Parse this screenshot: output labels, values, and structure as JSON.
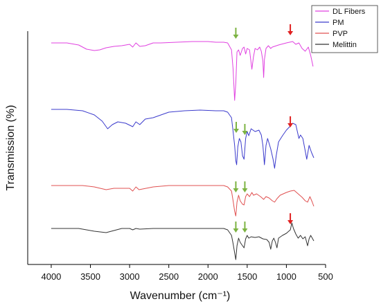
{
  "chart_data": {
    "type": "line",
    "title": "",
    "xlabel": "Wavenumber (cm⁻¹)",
    "ylabel": "Transmission (%)",
    "xlim": [
      4300,
      500
    ],
    "x_reversed": true,
    "x_ticks": [
      4000,
      3500,
      3000,
      2500,
      2000,
      1500,
      1000,
      500
    ],
    "y_tick_labels": false,
    "grid": false,
    "legend_position": "top-right",
    "series": [
      {
        "name": "DL Fibers",
        "color": "#e040e0",
        "points": [
          [
            4000,
            62
          ],
          [
            3800,
            62
          ],
          [
            3650,
            65
          ],
          [
            3550,
            71
          ],
          [
            3450,
            73
          ],
          [
            3380,
            72
          ],
          [
            3300,
            69
          ],
          [
            3200,
            67
          ],
          [
            3100,
            66
          ],
          [
            3000,
            64
          ],
          [
            2960,
            68
          ],
          [
            2920,
            62
          ],
          [
            2870,
            67
          ],
          [
            2800,
            66
          ],
          [
            2700,
            62
          ],
          [
            2600,
            62
          ],
          [
            2400,
            61
          ],
          [
            2200,
            60
          ],
          [
            2000,
            60
          ],
          [
            1900,
            61
          ],
          [
            1800,
            61
          ],
          [
            1750,
            62
          ],
          [
            1700,
            72
          ],
          [
            1680,
            100
          ],
          [
            1660,
            145
          ],
          [
            1645,
            120
          ],
          [
            1630,
            75
          ],
          [
            1610,
            72
          ],
          [
            1590,
            80
          ],
          [
            1560,
            70
          ],
          [
            1540,
            68
          ],
          [
            1520,
            78
          ],
          [
            1500,
            70
          ],
          [
            1470,
            72
          ],
          [
            1440,
            100
          ],
          [
            1420,
            82
          ],
          [
            1400,
            70
          ],
          [
            1370,
            72
          ],
          [
            1340,
            68
          ],
          [
            1320,
            74
          ],
          [
            1300,
            88
          ],
          [
            1290,
            112
          ],
          [
            1280,
            86
          ],
          [
            1260,
            70
          ],
          [
            1230,
            66
          ],
          [
            1200,
            70
          ],
          [
            1180,
            68
          ],
          [
            1100,
            65
          ],
          [
            1000,
            62
          ],
          [
            920,
            60
          ],
          [
            880,
            64
          ],
          [
            840,
            62
          ],
          [
            800,
            70
          ],
          [
            760,
            74
          ],
          [
            720,
            68
          ],
          [
            690,
            80
          ],
          [
            660,
            96
          ]
        ]
      },
      {
        "name": "PM",
        "color": "#3a3acc",
        "points": [
          [
            4000,
            158
          ],
          [
            3800,
            158
          ],
          [
            3600,
            160
          ],
          [
            3450,
            166
          ],
          [
            3350,
            175
          ],
          [
            3280,
            186
          ],
          [
            3220,
            180
          ],
          [
            3150,
            176
          ],
          [
            3050,
            178
          ],
          [
            2960,
            183
          ],
          [
            2920,
            176
          ],
          [
            2870,
            180
          ],
          [
            2800,
            172
          ],
          [
            2700,
            170
          ],
          [
            2500,
            162
          ],
          [
            2300,
            160
          ],
          [
            2100,
            159
          ],
          [
            1900,
            160
          ],
          [
            1800,
            160
          ],
          [
            1750,
            162
          ],
          [
            1700,
            170
          ],
          [
            1680,
            190
          ],
          [
            1660,
            210
          ],
          [
            1645,
            232
          ],
          [
            1635,
            238
          ],
          [
            1620,
            212
          ],
          [
            1600,
            200
          ],
          [
            1580,
            205
          ],
          [
            1560,
            225
          ],
          [
            1540,
            230
          ],
          [
            1520,
            200
          ],
          [
            1500,
            190
          ],
          [
            1480,
            196
          ],
          [
            1450,
            186
          ],
          [
            1400,
            190
          ],
          [
            1350,
            188
          ],
          [
            1320,
            195
          ],
          [
            1300,
            210
          ],
          [
            1280,
            238
          ],
          [
            1260,
            210
          ],
          [
            1240,
            200
          ],
          [
            1200,
            215
          ],
          [
            1170,
            230
          ],
          [
            1150,
            243
          ],
          [
            1130,
            225
          ],
          [
            1100,
            205
          ],
          [
            1050,
            196
          ],
          [
            1000,
            188
          ],
          [
            950,
            182
          ],
          [
            920,
            178
          ],
          [
            880,
            180
          ],
          [
            840,
            200
          ],
          [
            820,
            195
          ],
          [
            790,
            200
          ],
          [
            760,
            218
          ],
          [
            740,
            230
          ],
          [
            710,
            210
          ],
          [
            680,
            220
          ],
          [
            650,
            228
          ]
        ]
      },
      {
        "name": "PVP",
        "color": "#e05050",
        "points": [
          [
            4000,
            268
          ],
          [
            3800,
            268
          ],
          [
            3600,
            268
          ],
          [
            3450,
            270
          ],
          [
            3300,
            274
          ],
          [
            3200,
            272
          ],
          [
            3000,
            272
          ],
          [
            2960,
            276
          ],
          [
            2920,
            270
          ],
          [
            2880,
            274
          ],
          [
            2700,
            270
          ],
          [
            2500,
            268
          ],
          [
            2300,
            268
          ],
          [
            2100,
            268
          ],
          [
            1900,
            268
          ],
          [
            1800,
            268
          ],
          [
            1750,
            270
          ],
          [
            1700,
            276
          ],
          [
            1680,
            290
          ],
          [
            1660,
            305
          ],
          [
            1645,
            312
          ],
          [
            1630,
            292
          ],
          [
            1610,
            282
          ],
          [
            1590,
            290
          ],
          [
            1560,
            295
          ],
          [
            1540,
            296
          ],
          [
            1520,
            284
          ],
          [
            1500,
            280
          ],
          [
            1470,
            284
          ],
          [
            1440,
            278
          ],
          [
            1420,
            282
          ],
          [
            1380,
            280
          ],
          [
            1330,
            284
          ],
          [
            1290,
            288
          ],
          [
            1260,
            284
          ],
          [
            1220,
            286
          ],
          [
            1180,
            290
          ],
          [
            1150,
            292
          ],
          [
            1120,
            287
          ],
          [
            1080,
            282
          ],
          [
            1000,
            278
          ],
          [
            950,
            276
          ],
          [
            900,
            275
          ],
          [
            850,
            280
          ],
          [
            800,
            285
          ],
          [
            760,
            290
          ],
          [
            730,
            292
          ],
          [
            700,
            284
          ],
          [
            670,
            292
          ],
          [
            650,
            298
          ]
        ]
      },
      {
        "name": "Melittin",
        "color": "#333333",
        "points": [
          [
            4000,
            330
          ],
          [
            3800,
            330
          ],
          [
            3650,
            330
          ],
          [
            3550,
            332
          ],
          [
            3450,
            334
          ],
          [
            3300,
            336
          ],
          [
            3200,
            333
          ],
          [
            3100,
            330
          ],
          [
            3000,
            330
          ],
          [
            2960,
            332
          ],
          [
            2920,
            330
          ],
          [
            2870,
            331
          ],
          [
            2700,
            330
          ],
          [
            2500,
            330
          ],
          [
            2300,
            330
          ],
          [
            2100,
            330
          ],
          [
            1900,
            330
          ],
          [
            1800,
            330
          ],
          [
            1750,
            332
          ],
          [
            1700,
            340
          ],
          [
            1680,
            352
          ],
          [
            1660,
            365
          ],
          [
            1645,
            375
          ],
          [
            1630,
            355
          ],
          [
            1610,
            344
          ],
          [
            1590,
            350
          ],
          [
            1560,
            355
          ],
          [
            1540,
            358
          ],
          [
            1520,
            345
          ],
          [
            1500,
            340
          ],
          [
            1480,
            344
          ],
          [
            1450,
            342
          ],
          [
            1400,
            343
          ],
          [
            1350,
            342
          ],
          [
            1300,
            345
          ],
          [
            1250,
            346
          ],
          [
            1220,
            350
          ],
          [
            1200,
            360
          ],
          [
            1180,
            348
          ],
          [
            1160,
            344
          ],
          [
            1140,
            350
          ],
          [
            1120,
            358
          ],
          [
            1100,
            344
          ],
          [
            1050,
            340
          ],
          [
            1000,
            337
          ],
          [
            950,
            332
          ],
          [
            930,
            322
          ],
          [
            910,
            330
          ],
          [
            880,
            338
          ],
          [
            850,
            344
          ],
          [
            820,
            340
          ],
          [
            790,
            345
          ],
          [
            760,
            342
          ],
          [
            730,
            355
          ],
          [
            710,
            345
          ],
          [
            690,
            340
          ],
          [
            670,
            344
          ],
          [
            650,
            348
          ]
        ]
      }
    ],
    "annotations": [
      {
        "type": "arrow",
        "color": "#7cb342",
        "x": 1645,
        "y": 42
      },
      {
        "type": "arrow",
        "color": "#e02020",
        "x": 950,
        "y": 37
      },
      {
        "type": "arrow",
        "color": "#7cb342",
        "x": 1640,
        "y": 178
      },
      {
        "type": "arrow",
        "color": "#7cb342",
        "x": 1530,
        "y": 181
      },
      {
        "type": "arrow",
        "color": "#e02020",
        "x": 950,
        "y": 170
      },
      {
        "type": "arrow",
        "color": "#7cb342",
        "x": 1645,
        "y": 264
      },
      {
        "type": "arrow",
        "color": "#7cb342",
        "x": 1530,
        "y": 264
      },
      {
        "type": "arrow",
        "color": "#7cb342",
        "x": 1645,
        "y": 322
      },
      {
        "type": "arrow",
        "color": "#7cb342",
        "x": 1530,
        "y": 322
      },
      {
        "type": "arrow",
        "color": "#e02020",
        "x": 950,
        "y": 310
      }
    ]
  }
}
